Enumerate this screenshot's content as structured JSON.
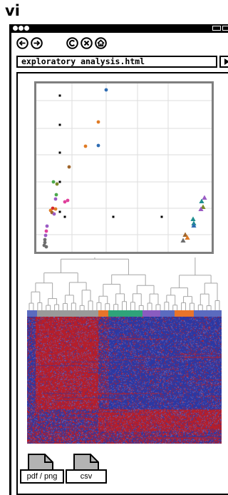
{
  "panel_label": "vi",
  "browser": {
    "nav_icons": [
      "back-arrow-icon",
      "forward-arrow-icon",
      "copyright-icon",
      "close-circle-icon",
      "home-icon"
    ],
    "address": "exploratory analysis.html",
    "go_icon": "play-triangle-icon"
  },
  "scatter": {
    "description_colors": {
      "black": "#000000",
      "blue": "#2f6db3",
      "orange": "#e07b25",
      "brown": "#a0662c",
      "green": "#4aa84a",
      "pink": "#e0409c",
      "red": "#d42a2a",
      "purple": "#9b5cc4",
      "grey": "#6e6e6e",
      "teal": "#1f8f8f",
      "olive": "#7a8a2a"
    }
  },
  "heatmap": {
    "colors": {
      "high": "#b51e2a",
      "low": "#2b38a3",
      "mid": "#6a5fb0"
    },
    "annotation_colors": [
      "#5b6bbf",
      "#9a9a9a",
      "#e8742a",
      "#2fa37a",
      "#8a5cc0",
      "#5b6bbf",
      "#e8742a",
      "#5b6bbf"
    ]
  },
  "downloads": {
    "image_label": "pdf / png",
    "data_label": "csv"
  }
}
